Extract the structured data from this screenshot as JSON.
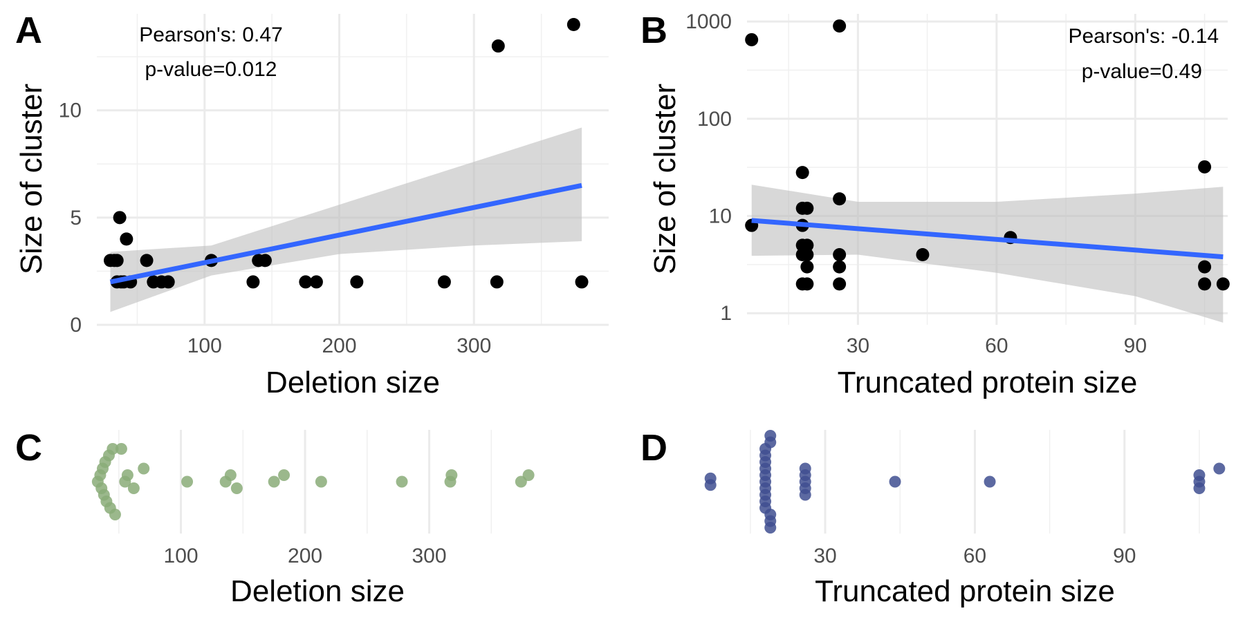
{
  "chart_data": [
    {
      "panel": "A",
      "type": "scatter",
      "xlabel": "Deletion size",
      "ylabel": "Size of cluster",
      "xlim": [
        20,
        400
      ],
      "ylim": [
        0,
        14.5
      ],
      "xticks": [
        100,
        200,
        300
      ],
      "yticks": [
        0,
        5,
        10
      ],
      "annotations": [
        "Pearson's: 0.47",
        "p-value=0.012"
      ],
      "colors": {
        "points": "#000000",
        "fit": "#3366ff",
        "ribbon": "#bebebe"
      },
      "points": [
        [
          30,
          3
        ],
        [
          33,
          3
        ],
        [
          35,
          3
        ],
        [
          35,
          2
        ],
        [
          37,
          5
        ],
        [
          38,
          2
        ],
        [
          40,
          2
        ],
        [
          42,
          4
        ],
        [
          45,
          2
        ],
        [
          57,
          3
        ],
        [
          62,
          2
        ],
        [
          68,
          2
        ],
        [
          73,
          2
        ],
        [
          105,
          3
        ],
        [
          136,
          2
        ],
        [
          140,
          3
        ],
        [
          145,
          3
        ],
        [
          175,
          2
        ],
        [
          183,
          2
        ],
        [
          213,
          2
        ],
        [
          278,
          2
        ],
        [
          317,
          2
        ],
        [
          318,
          13
        ],
        [
          374,
          14
        ],
        [
          380,
          2
        ]
      ],
      "fit": {
        "x": [
          30,
          380
        ],
        "y": [
          2.0,
          6.5
        ]
      },
      "ribbon": {
        "x": [
          30,
          105,
          200,
          300,
          380
        ],
        "lower": [
          0.6,
          2.3,
          3.3,
          3.7,
          3.9
        ],
        "upper": [
          3.4,
          3.7,
          5.6,
          7.6,
          9.2
        ]
      }
    },
    {
      "panel": "B",
      "type": "scatter",
      "scale_y": "log10",
      "xlabel": "Truncated protein size",
      "ylabel": "Size of cluster",
      "xlim": [
        6,
        110
      ],
      "ylim": [
        0.76,
        1200
      ],
      "xticks": [
        30,
        60,
        90
      ],
      "yticks": [
        1,
        10,
        100,
        1000
      ],
      "annotations": [
        "Pearson's: -0.14",
        "p-value=0.49"
      ],
      "colors": {
        "points": "#000000",
        "fit": "#3366ff",
        "ribbon": "#bebebe"
      },
      "points": [
        [
          7,
          650
        ],
        [
          7,
          8
        ],
        [
          26,
          900
        ],
        [
          26,
          15
        ],
        [
          26,
          4
        ],
        [
          26,
          3
        ],
        [
          26,
          2
        ],
        [
          18,
          28
        ],
        [
          18,
          12
        ],
        [
          18,
          8
        ],
        [
          18,
          5
        ],
        [
          18,
          4
        ],
        [
          18,
          2
        ],
        [
          19,
          12
        ],
        [
          19,
          5
        ],
        [
          19,
          4
        ],
        [
          19,
          3
        ],
        [
          19,
          2
        ],
        [
          44,
          4
        ],
        [
          63,
          6
        ],
        [
          105,
          32
        ],
        [
          105,
          3
        ],
        [
          105,
          2
        ],
        [
          109,
          2
        ]
      ],
      "fit": {
        "x": [
          7,
          109
        ],
        "y": [
          9,
          3.8
        ]
      },
      "ribbon": {
        "x": [
          7,
          30,
          60,
          90,
          109
        ],
        "lower": [
          3.9,
          4.0,
          2.6,
          1.5,
          0.8
        ],
        "upper": [
          21,
          14,
          14,
          17,
          20
        ]
      }
    },
    {
      "panel": "C",
      "type": "scatter",
      "subtype": "beeswarm",
      "xlabel": "Deletion size",
      "xlim": [
        20,
        400
      ],
      "xticks": [
        100,
        200,
        300
      ],
      "colors": {
        "points": "#8aab78"
      },
      "points": [
        [
          33,
          0
        ],
        [
          35,
          1
        ],
        [
          36,
          -1
        ],
        [
          37,
          2
        ],
        [
          38,
          -2
        ],
        [
          39,
          3
        ],
        [
          40,
          -3
        ],
        [
          42,
          4
        ],
        [
          43,
          -4
        ],
        [
          45,
          5
        ],
        [
          47,
          -5
        ],
        [
          52,
          5
        ],
        [
          55,
          0
        ],
        [
          57,
          1
        ],
        [
          62,
          -1
        ],
        [
          70,
          2
        ],
        [
          105,
          0
        ],
        [
          136,
          0
        ],
        [
          140,
          1
        ],
        [
          145,
          -1
        ],
        [
          175,
          0
        ],
        [
          183,
          1
        ],
        [
          213,
          0
        ],
        [
          278,
          0
        ],
        [
          317,
          0
        ],
        [
          318,
          1
        ],
        [
          374,
          0
        ],
        [
          380,
          1
        ]
      ]
    },
    {
      "panel": "D",
      "type": "scatter",
      "subtype": "beeswarm",
      "xlabel": "Truncated protein size",
      "xlim": [
        6,
        110
      ],
      "xticks": [
        30,
        60,
        90
      ],
      "colors": {
        "points": "#3f4f91"
      },
      "points": [
        [
          7,
          0.5
        ],
        [
          7,
          -0.5
        ],
        [
          18,
          0
        ],
        [
          18,
          1
        ],
        [
          18,
          -1
        ],
        [
          18,
          2
        ],
        [
          18,
          -2
        ],
        [
          18,
          3
        ],
        [
          18,
          -3
        ],
        [
          18,
          4
        ],
        [
          18,
          -4
        ],
        [
          18,
          5
        ],
        [
          19,
          -5
        ],
        [
          19,
          6
        ],
        [
          19,
          -6
        ],
        [
          19,
          7
        ],
        [
          19,
          -7
        ],
        [
          26,
          0
        ],
        [
          26,
          1
        ],
        [
          26,
          -1
        ],
        [
          26,
          2
        ],
        [
          26,
          -2
        ],
        [
          44,
          0
        ],
        [
          63,
          0
        ],
        [
          105,
          0
        ],
        [
          105,
          1
        ],
        [
          105,
          -1
        ],
        [
          109,
          2
        ]
      ]
    }
  ]
}
